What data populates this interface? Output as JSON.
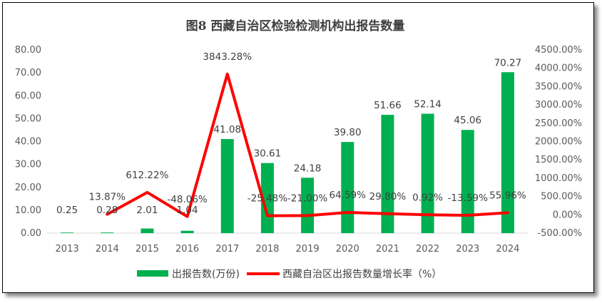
{
  "chart_data": {
    "type": "bar",
    "title": "图8  西藏自治区检验检测机构出报告数量",
    "categories": [
      "2013",
      "2014",
      "2015",
      "2016",
      "2017",
      "2018",
      "2019",
      "2020",
      "2021",
      "2022",
      "2023",
      "2024"
    ],
    "series": [
      {
        "name": "出报告数(万份)",
        "type": "bar",
        "axis": "left",
        "color": "#00B050",
        "values": [
          0.25,
          0.28,
          2.01,
          1.04,
          41.08,
          30.61,
          24.18,
          39.8,
          51.66,
          52.14,
          45.06,
          70.27
        ],
        "labels": [
          "0.25",
          "0.28",
          "2.01",
          "1.04",
          "41.08",
          "30.61",
          "24.18",
          "39.80",
          "51.66",
          "52.14",
          "45.06",
          "70.27"
        ]
      },
      {
        "name": "西藏自治区出报告数量增长率（%）",
        "type": "line",
        "axis": "right",
        "color": "#FF0000",
        "values": [
          null,
          13.87,
          612.22,
          -48.06,
          3843.28,
          -25.48,
          -21.0,
          64.59,
          29.8,
          0.92,
          -13.59,
          55.96
        ],
        "labels": [
          "",
          "13.87%",
          "612.22%",
          "-48.06%",
          "3843.28%",
          "-25.48%",
          "-21.00%",
          "64.59%",
          "29.80%",
          "0.92%",
          "-13.59%",
          "55.96%"
        ]
      }
    ],
    "y_left": {
      "ylim": [
        0,
        80
      ],
      "ticks": [
        "0.00",
        "10.00",
        "20.00",
        "30.00",
        "40.00",
        "50.00",
        "60.00",
        "70.00",
        "80.00"
      ]
    },
    "y_right": {
      "ylim": [
        -500,
        4500
      ],
      "ticks": [
        "-500.00%",
        "0.00%",
        "500.00%",
        "1000.00%",
        "1500.00%",
        "2000.00%",
        "2500.00%",
        "3000.00%",
        "3500.00%",
        "4000.00%",
        "4500.00%"
      ]
    },
    "grid": false,
    "legend_position": "bottom"
  }
}
